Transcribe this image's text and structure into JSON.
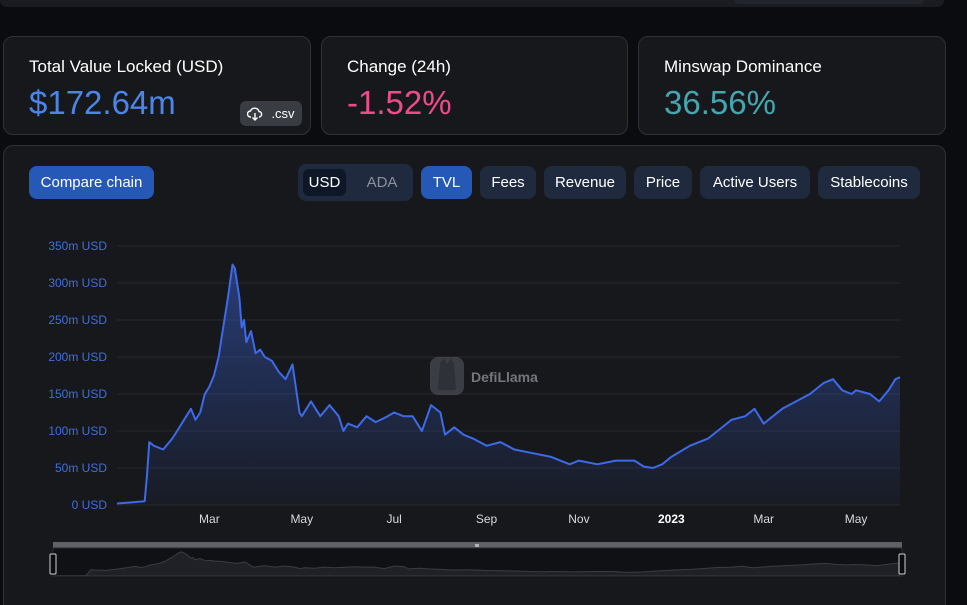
{
  "stats": {
    "tvl": {
      "label": "Total Value Locked (USD)",
      "value": "$172.64m",
      "color": "#4a86e8",
      "csv_label": ".csv"
    },
    "change": {
      "label": "Change (24h)",
      "value": "-1.52%",
      "color": "#ee4b8c"
    },
    "dominance": {
      "label": "Minswap Dominance",
      "value": "36.56%",
      "color": "#46a6b0"
    }
  },
  "controls": {
    "compare_chain": "Compare chain",
    "currency": {
      "options": [
        "USD",
        "ADA"
      ],
      "selected": "USD"
    },
    "metrics": [
      "TVL",
      "Fees",
      "Revenue",
      "Price",
      "Active Users",
      "Stablecoins"
    ],
    "selected_metric": "TVL"
  },
  "watermark": "DefiLlama",
  "colors": {
    "line": "#3d6ae8",
    "accent": "#2658b8"
  },
  "icons": [
    "download-cloud-icon",
    "llama-logo-icon",
    "slider-handle-icon"
  ],
  "chart_data": {
    "type": "area",
    "x_unit": "months since 2022-01",
    "x_ticks": [
      {
        "x": 2,
        "label": "Mar"
      },
      {
        "x": 4,
        "label": "May"
      },
      {
        "x": 6,
        "label": "Jul"
      },
      {
        "x": 8,
        "label": "Sep"
      },
      {
        "x": 10,
        "label": "Nov"
      },
      {
        "x": 12,
        "label": "2023",
        "bold": true
      },
      {
        "x": 14,
        "label": "Mar"
      },
      {
        "x": 16,
        "label": "May"
      }
    ],
    "y_ticks": [
      "0 USD",
      "50m USD",
      "100m USD",
      "150m USD",
      "200m USD",
      "250m USD",
      "300m USD",
      "350m USD"
    ],
    "ylim": [
      0,
      350
    ],
    "xlim": [
      0,
      16.95
    ],
    "series": [
      {
        "x": [
          0,
          0.6,
          0.65,
          0.7,
          0.8,
          1.0,
          1.2,
          1.3,
          1.5,
          1.6,
          1.7,
          1.8,
          1.9,
          2.0,
          2.1,
          2.2,
          2.3,
          2.4,
          2.5,
          2.55,
          2.6,
          2.65,
          2.7,
          2.75,
          2.8,
          2.9,
          3.0,
          3.1,
          3.2,
          3.35,
          3.5,
          3.65,
          3.8,
          3.95,
          4.0,
          4.1,
          4.2,
          4.4,
          4.6,
          4.8,
          4.9,
          5.0,
          5.2,
          5.4,
          5.6,
          5.8,
          6.0,
          6.2,
          6.4,
          6.6,
          6.8,
          7.0,
          7.1,
          7.3,
          7.5,
          7.7,
          8.0,
          8.3,
          8.6,
          9.0,
          9.4,
          9.8,
          10.0,
          10.4,
          10.8,
          11.2,
          11.4,
          11.6,
          11.8,
          12.0,
          12.4,
          12.8,
          13.0,
          13.3,
          13.6,
          13.8,
          14.0,
          14.2,
          14.4,
          14.7,
          15.0,
          15.3,
          15.5,
          15.7,
          15.9,
          16.0,
          16.3,
          16.5,
          16.7,
          16.85,
          16.95
        ],
        "values": [
          2,
          5,
          40,
          85,
          80,
          75,
          90,
          100,
          120,
          130,
          115,
          125,
          150,
          160,
          175,
          200,
          240,
          280,
          325,
          320,
          300,
          280,
          240,
          250,
          220,
          235,
          205,
          210,
          200,
          195,
          180,
          170,
          190,
          125,
          120,
          130,
          140,
          120,
          135,
          120,
          100,
          110,
          105,
          120,
          112,
          118,
          125,
          120,
          120,
          100,
          135,
          125,
          95,
          105,
          95,
          90,
          80,
          85,
          75,
          70,
          65,
          55,
          60,
          55,
          60,
          60,
          52,
          50,
          55,
          65,
          80,
          90,
          100,
          115,
          120,
          130,
          110,
          120,
          130,
          140,
          150,
          165,
          170,
          155,
          150,
          155,
          150,
          140,
          155,
          170,
          172.64
        ]
      }
    ]
  }
}
